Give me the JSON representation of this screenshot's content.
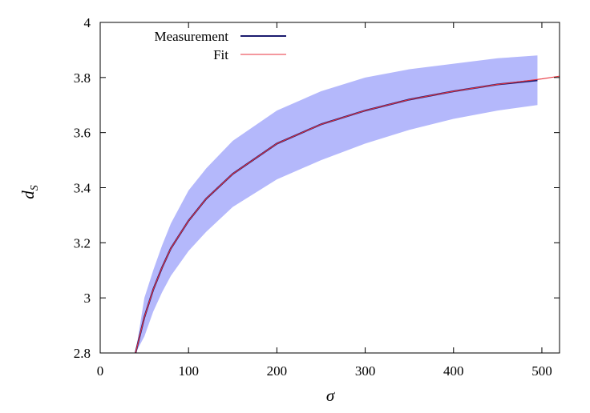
{
  "chart_data": {
    "type": "line",
    "xlabel": "σ",
    "ylabel_main": "d",
    "ylabel_sub": "S",
    "xlim": [
      0,
      520
    ],
    "ylim": [
      2.8,
      4.0
    ],
    "xticks": [
      0,
      100,
      200,
      300,
      400,
      500
    ],
    "xtick_labels": [
      "0",
      "100",
      "200",
      "300",
      "400",
      "500"
    ],
    "yticks": [
      2.8,
      3.0,
      3.2,
      3.4,
      3.6,
      3.8,
      4.0
    ],
    "ytick_labels": [
      "2.8",
      "3",
      "3.2",
      "3.4",
      "3.6",
      "3.8",
      "4"
    ],
    "legend_position": "top-left",
    "series": [
      {
        "name": "Measurement",
        "color": "#1a1a6e",
        "x": [
          40,
          50,
          60,
          70,
          80,
          100,
          120,
          150,
          200,
          250,
          300,
          350,
          400,
          450,
          495
        ],
        "y": [
          2.8,
          2.93,
          3.03,
          3.11,
          3.18,
          3.28,
          3.36,
          3.45,
          3.56,
          3.63,
          3.68,
          3.72,
          3.75,
          3.775,
          3.79
        ],
        "band_lower": [
          2.8,
          2.86,
          2.95,
          3.02,
          3.08,
          3.17,
          3.24,
          3.33,
          3.43,
          3.5,
          3.56,
          3.61,
          3.65,
          3.68,
          3.7
        ],
        "band_upper": [
          2.8,
          3.0,
          3.1,
          3.19,
          3.27,
          3.39,
          3.47,
          3.57,
          3.68,
          3.75,
          3.8,
          3.83,
          3.85,
          3.87,
          3.88
        ]
      },
      {
        "name": "Fit",
        "color": "#e8323c",
        "x": [
          40,
          50,
          60,
          70,
          80,
          100,
          120,
          150,
          200,
          250,
          300,
          350,
          400,
          450,
          500,
          520
        ],
        "y": [
          2.8,
          2.93,
          3.03,
          3.11,
          3.18,
          3.28,
          3.36,
          3.45,
          3.56,
          3.63,
          3.68,
          3.72,
          3.75,
          3.775,
          3.795,
          3.805
        ]
      }
    ]
  }
}
